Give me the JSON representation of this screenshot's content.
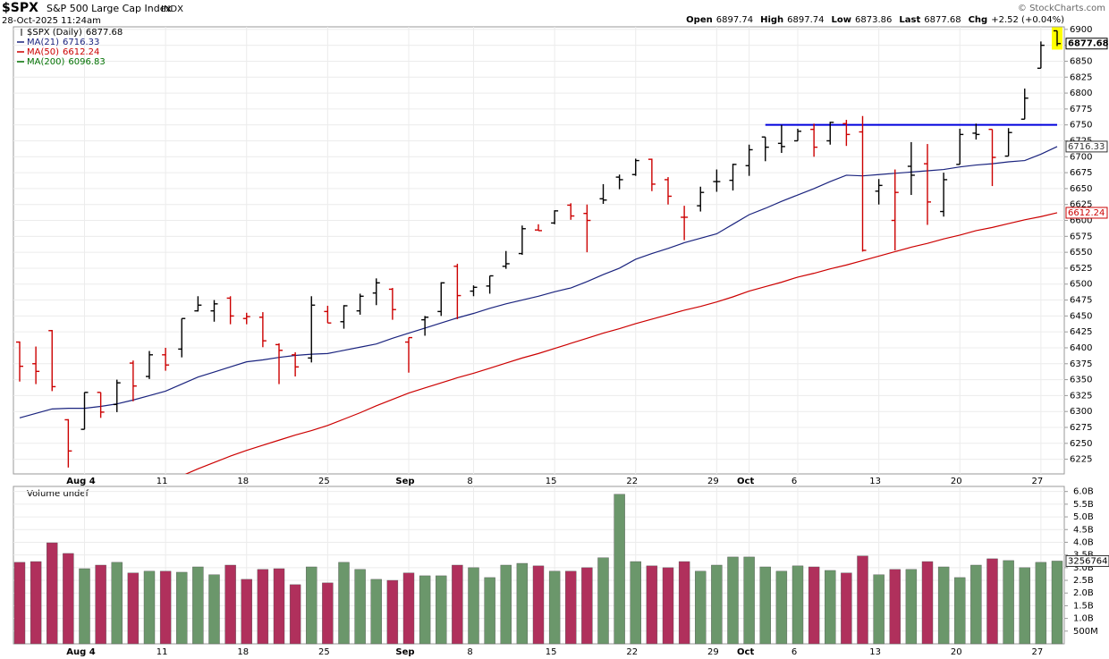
{
  "chart_data": {
    "type": "ohlc",
    "symbol": "$SPX",
    "name": "S&P 500 Large Cap Index",
    "exchange": "INDX",
    "timestamp": "28-Oct-2025 11:24am",
    "copyright": "© StockCharts.com",
    "quote": {
      "labels": [
        "Open",
        "High",
        "Low",
        "Last",
        "Chg"
      ],
      "values": [
        "6897.74",
        "6897.74",
        "6873.86",
        "6877.68",
        "+2.52 (+0.04%)"
      ]
    },
    "price_legend": {
      "name": "$SPX (Daily)",
      "value": "6877.68"
    },
    "categories": [
      null,
      null,
      null,
      null,
      "Aug 4",
      null,
      null,
      null,
      null,
      "11",
      null,
      null,
      null,
      null,
      "18",
      null,
      null,
      null,
      null,
      "25",
      null,
      null,
      null,
      null,
      "Sep",
      null,
      null,
      null,
      "8",
      null,
      null,
      null,
      null,
      "15",
      null,
      null,
      null,
      null,
      "22",
      null,
      null,
      null,
      null,
      "29",
      null,
      "Oct",
      null,
      null,
      "6",
      null,
      null,
      null,
      null,
      "13",
      null,
      null,
      null,
      null,
      "20",
      null,
      null,
      null,
      null,
      "27",
      null
    ],
    "ohlc": {
      "open": [
        6409,
        6375,
        6427,
        6287,
        6272,
        6330,
        6311,
        6376,
        6355,
        6389,
        6398,
        6458,
        6458,
        6478,
        6446,
        6448,
        6405,
        6389,
        6384,
        6457,
        6441,
        6458,
        6486,
        6492,
        6409,
        6444,
        6457,
        6528,
        6489,
        6497,
        6528,
        6548,
        6585,
        6596,
        6624,
        6611,
        6634,
        6668,
        6672,
        6696,
        6664,
        6605,
        6623,
        6661,
        6663,
        6686,
        6731,
        6721,
        6725,
        6743,
        6725,
        6752,
        6739,
        6646,
        6600,
        6685,
        6689,
        6614,
        6688,
        6737,
        6743,
        6701,
        6759,
        6839,
        6897.74
      ],
      "high": [
        6410,
        6402,
        6428,
        6288,
        6330,
        6330,
        6350,
        6380,
        6395,
        6400,
        6446,
        6481,
        6475,
        6481,
        6455,
        6456,
        6407,
        6393,
        6481,
        6466,
        6467,
        6485,
        6509,
        6494,
        6416,
        6450,
        6503,
        6532,
        6498,
        6513,
        6552,
        6592,
        6594,
        6616,
        6627,
        6625,
        6657,
        6672,
        6697,
        6697,
        6668,
        6623,
        6653,
        6680,
        6689,
        6719,
        6731,
        6750,
        6744,
        6752,
        6755,
        6758,
        6764,
        6665,
        6680,
        6723,
        6720,
        6675,
        6744,
        6752,
        6743,
        6745,
        6807,
        6881,
        6897.74
      ],
      "low": [
        6347,
        6343,
        6332,
        6212,
        6272,
        6290,
        6299,
        6316,
        6351,
        6364,
        6385,
        6457,
        6441,
        6437,
        6437,
        6401,
        6343,
        6355,
        6377,
        6439,
        6430,
        6452,
        6467,
        6444,
        6361,
        6419,
        6450,
        6445,
        6481,
        6485,
        6524,
        6546,
        6584,
        6594,
        6601,
        6550,
        6626,
        6649,
        6670,
        6646,
        6625,
        6569,
        6614,
        6645,
        6647,
        6670,
        6693,
        6706,
        6725,
        6700,
        6719,
        6717,
        6551,
        6625,
        6553,
        6640,
        6593,
        6606,
        6688,
        6727,
        6654,
        6701,
        6759,
        6839,
        6873.86
      ],
      "close": [
        6371,
        6363,
        6339,
        6238,
        6330,
        6299,
        6345,
        6340,
        6389,
        6373,
        6446,
        6467,
        6469,
        6450,
        6449,
        6411,
        6396,
        6370,
        6467,
        6439,
        6466,
        6481,
        6502,
        6460,
        6416,
        6448,
        6502,
        6482,
        6495,
        6513,
        6532,
        6587,
        6584,
        6615,
        6607,
        6600,
        6632,
        6664,
        6694,
        6657,
        6638,
        6605,
        6644,
        6661,
        6688,
        6711,
        6715,
        6716,
        6740,
        6715,
        6754,
        6735,
        6553,
        6655,
        6644,
        6671,
        6629,
        6664,
        6735,
        6735,
        6699,
        6738,
        6792,
        6875,
        6877.68
      ]
    },
    "up_color": "#000000",
    "down_color": "#cc0000",
    "highlight_color": "#ffff00",
    "overlays": [
      {
        "name": "MA(21)",
        "value": "6716.33",
        "color": "#1a237e",
        "values": [
          6290,
          6297,
          6304,
          6305,
          6305,
          6308,
          6312,
          6318,
          6325,
          6332,
          6343,
          6354,
          6362,
          6370,
          6378,
          6381,
          6385,
          6388,
          6390,
          6391,
          6396,
          6401,
          6406,
          6415,
          6423,
          6431,
          6439,
          6447,
          6454,
          6462,
          6469,
          6475,
          6481,
          6488,
          6494,
          6504,
          6515,
          6525,
          6539,
          6548,
          6556,
          6565,
          6572,
          6579,
          6594,
          6609,
          6619,
          6630,
          6640,
          6650,
          6661,
          6671,
          6670,
          6672,
          6674,
          6676,
          6678,
          6680,
          6684,
          6687,
          6689,
          6692,
          6694,
          6704,
          6716
        ]
      },
      {
        "name": "MA(50)",
        "value": "6612.24",
        "color": "#cc0000",
        "values": [
          6120,
          6128,
          6136,
          6144,
          6152,
          6160,
          6168,
          6176,
          6184,
          6192,
          6199,
          6210,
          6220,
          6230,
          6239,
          6247,
          6255,
          6263,
          6270,
          6278,
          6288,
          6298,
          6309,
          6319,
          6329,
          6337,
          6345,
          6353,
          6360,
          6368,
          6376,
          6384,
          6391,
          6399,
          6407,
          6415,
          6423,
          6430,
          6438,
          6445,
          6452,
          6459,
          6465,
          6472,
          6480,
          6489,
          6496,
          6503,
          6511,
          6517,
          6524,
          6530,
          6537,
          6544,
          6551,
          6558,
          6564,
          6571,
          6577,
          6584,
          6589,
          6595,
          6601,
          6606,
          6612
        ]
      },
      {
        "name": "MA(200)",
        "value": "6096.83",
        "color": "#007000"
      }
    ],
    "hline": {
      "value": 6750,
      "start": 46,
      "end": 64,
      "color": "#0000dd"
    },
    "ylim": [
      6202,
      6904
    ],
    "yticks": [
      6225,
      6250,
      6275,
      6300,
      6325,
      6350,
      6375,
      6400,
      6425,
      6450,
      6475,
      6500,
      6525,
      6550,
      6575,
      6600,
      6625,
      6650,
      6675,
      6700,
      6725,
      6750,
      6775,
      6800,
      6825,
      6850,
      6875,
      6900
    ],
    "grid": true,
    "volume": {
      "title": "Volume undef",
      "last_label": "3256764",
      "values": [
        3.21,
        3.24,
        3.98,
        3.56,
        2.96,
        3.1,
        3.21,
        2.79,
        2.86,
        2.86,
        2.82,
        3.03,
        2.72,
        3.1,
        2.54,
        2.93,
        2.96,
        2.33,
        3.03,
        2.4,
        3.21,
        2.93,
        2.54,
        2.5,
        2.79,
        2.68,
        2.68,
        3.1,
        3.0,
        2.61,
        3.1,
        3.17,
        3.07,
        2.86,
        2.86,
        3.0,
        3.39,
        5.89,
        3.24,
        3.07,
        3.0,
        3.24,
        2.86,
        3.1,
        3.42,
        3.42,
        3.03,
        2.86,
        3.07,
        3.03,
        2.89,
        2.79,
        3.46,
        2.72,
        2.93,
        2.93,
        3.24,
        3.03,
        2.61,
        3.1,
        3.35,
        3.28,
        3.0,
        3.21,
        3.26
      ],
      "up_color": "#6b976b",
      "down_color": "#b0305c",
      "ylim": [
        0,
        6.2
      ],
      "yticks": [
        {
          "value": 6,
          "label": "6.0B"
        },
        {
          "value": 5.5,
          "label": "5.5B"
        },
        {
          "value": 5,
          "label": "5.0B"
        },
        {
          "value": 4.5,
          "label": "4.5B"
        },
        {
          "value": 4,
          "label": "4.0B"
        },
        {
          "value": 3.5,
          "label": "3.5B"
        },
        {
          "value": 3,
          "label": "3.0B"
        },
        {
          "value": 2.5,
          "label": "2.5B"
        },
        {
          "value": 2,
          "label": "2.0B"
        },
        {
          "value": 1.5,
          "label": "1.5B"
        },
        {
          "value": 1,
          "label": "1.0B"
        },
        {
          "value": 0.5,
          "label": "500M"
        }
      ]
    }
  }
}
